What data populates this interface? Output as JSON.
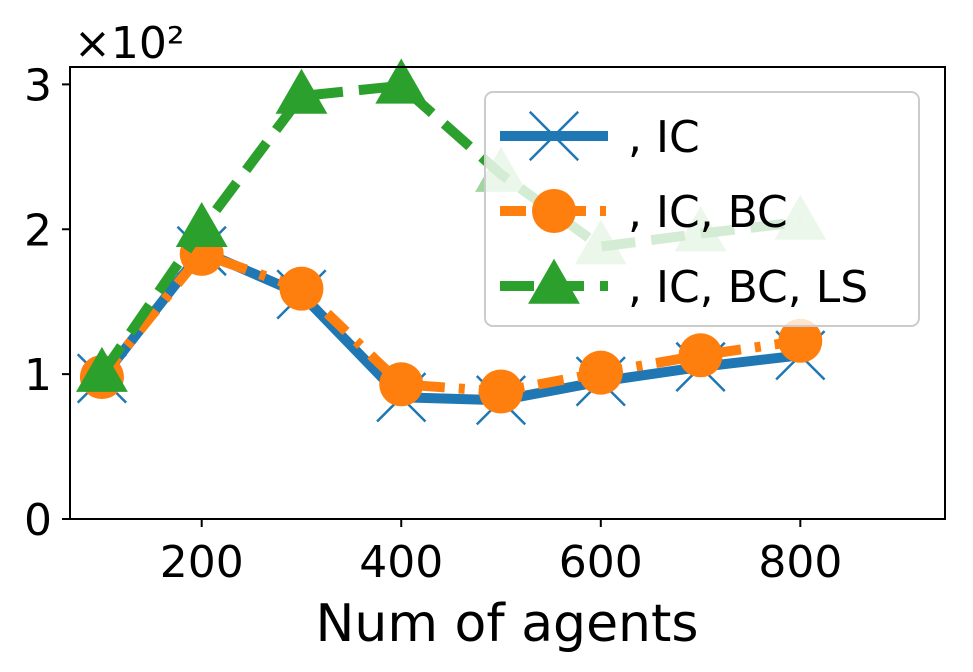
{
  "chart_data": {
    "type": "line",
    "title": "",
    "xlabel": "Num of agents",
    "ylabel": "",
    "y_multiplier_label": "×10²",
    "xlim": [
      68,
      945
    ],
    "ylim": [
      0,
      3.12
    ],
    "x_ticks": [
      200,
      400,
      600,
      800
    ],
    "x_tick_labels": [
      "200",
      "400",
      "600",
      "800"
    ],
    "y_ticks": [
      0,
      1,
      2,
      3
    ],
    "y_tick_labels": [
      "0",
      "1",
      "2",
      "3"
    ],
    "grid": false,
    "legend_position": "top-right",
    "x": [
      100,
      200,
      300,
      400,
      500,
      600,
      700,
      800
    ],
    "series": [
      {
        "name": ", IC",
        "color": "#1f77b4",
        "marker": "x",
        "linestyle": "solid",
        "values": [
          0.97,
          1.85,
          1.55,
          0.84,
          0.82,
          0.95,
          1.05,
          1.13
        ]
      },
      {
        "name": ", IC, BC",
        "color": "#ff7f0e",
        "marker": "circle",
        "linestyle": "dashdot",
        "values": [
          0.98,
          1.83,
          1.59,
          0.93,
          0.88,
          1.01,
          1.13,
          1.23
        ]
      },
      {
        "name": ", IC, BC, LS",
        "color": "#2ca02c",
        "marker": "triangle",
        "linestyle": "dashed",
        "values": [
          1.0,
          2.0,
          2.92,
          2.99,
          2.38,
          1.88,
          1.97,
          2.05
        ]
      }
    ]
  }
}
